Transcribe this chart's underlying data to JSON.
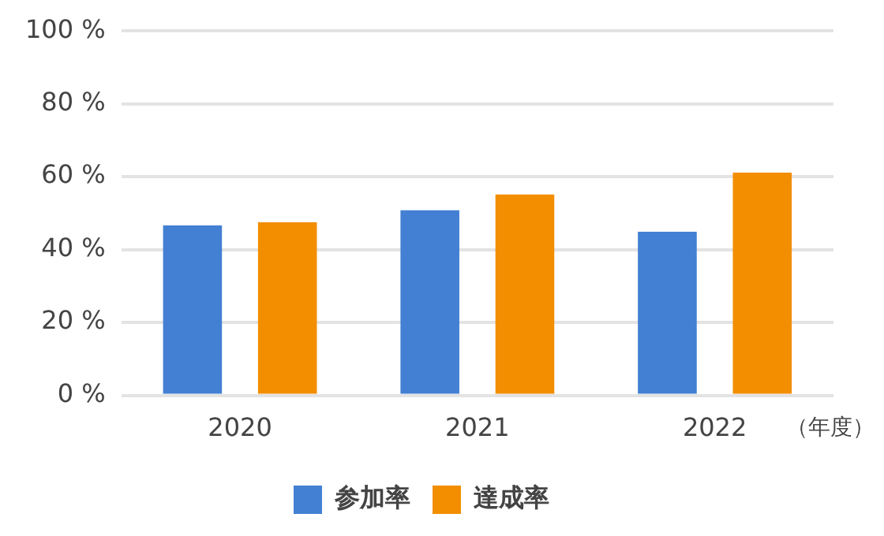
{
  "chart_data": {
    "type": "bar",
    "xlabel": "（年度）",
    "categories": [
      "2020",
      "2021",
      "2022"
    ],
    "series": [
      {
        "name": "参加率",
        "color": "#4380d3",
        "values": [
          46.6,
          50.8,
          44.9
        ]
      },
      {
        "name": "達成率",
        "color": "#f28e00",
        "values": [
          47.5,
          55.1,
          61.1
        ]
      }
    ],
    "ylim": [
      0,
      100
    ],
    "yticks": [
      {
        "value": 0,
        "label": "0 %"
      },
      {
        "value": 20,
        "label": "20 %"
      },
      {
        "value": 40,
        "label": "40 %"
      },
      {
        "value": 60,
        "label": "60 %"
      },
      {
        "value": 80,
        "label": "80 %"
      },
      {
        "value": 100,
        "label": "100 %"
      }
    ],
    "grid": "y",
    "legend": "bottom"
  }
}
